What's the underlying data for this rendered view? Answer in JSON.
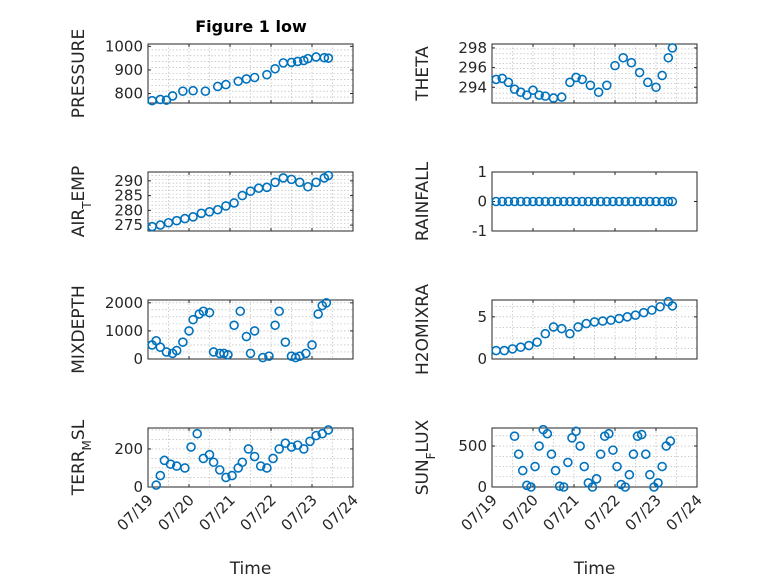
{
  "title": "Figure 1 low",
  "marker_color": "#0072bd",
  "chart_data": [
    {
      "type": "scatter",
      "id": "pressure",
      "ylabel": "PRESSURE",
      "xlabel": "",
      "xlim": [
        0,
        5
      ],
      "ylim": [
        760,
        1010
      ],
      "yticks": [
        {
          "v": 800,
          "label": "800"
        },
        {
          "v": 900,
          "label": "900"
        },
        {
          "v": 1000,
          "label": "1000"
        }
      ],
      "xticks": [],
      "grid": true,
      "x": [
        0.1,
        0.3,
        0.45,
        0.6,
        0.85,
        1.1,
        1.4,
        1.7,
        1.9,
        2.2,
        2.4,
        2.6,
        2.9,
        3.1,
        3.3,
        3.5,
        3.65,
        3.8,
        3.9,
        4.1,
        4.3,
        4.4
      ],
      "y": [
        770,
        775,
        772,
        790,
        810,
        812,
        810,
        830,
        838,
        852,
        862,
        868,
        880,
        905,
        930,
        932,
        936,
        940,
        948,
        955,
        952,
        950
      ]
    },
    {
      "type": "scatter",
      "id": "theta",
      "ylabel": "THETA",
      "xlabel": "",
      "xlim": [
        0,
        5
      ],
      "ylim": [
        292.4,
        298.4
      ],
      "yticks": [
        {
          "v": 294,
          "label": "294"
        },
        {
          "v": 296,
          "label": "296"
        },
        {
          "v": 298,
          "label": "298"
        }
      ],
      "xticks": [],
      "grid": true,
      "x": [
        0.1,
        0.25,
        0.4,
        0.55,
        0.7,
        0.85,
        1.0,
        1.15,
        1.3,
        1.5,
        1.7,
        1.9,
        2.05,
        2.2,
        2.4,
        2.6,
        2.8,
        3.0,
        3.2,
        3.4,
        3.6,
        3.8,
        4.0,
        4.15,
        4.3,
        4.4
      ],
      "y": [
        294.8,
        294.9,
        294.5,
        293.8,
        293.5,
        293.2,
        293.7,
        293.2,
        293.1,
        292.9,
        293.0,
        294.5,
        295.0,
        294.8,
        294.2,
        293.5,
        294.2,
        296.2,
        297.0,
        296.5,
        295.5,
        294.5,
        294.0,
        295.2,
        297.0,
        298.0
      ]
    },
    {
      "type": "scatter",
      "id": "air_temp",
      "ylabel": "AIR_TEMP",
      "xlabel": "",
      "xlim": [
        0,
        5
      ],
      "ylim": [
        273,
        293
      ],
      "yticks": [
        {
          "v": 275,
          "label": "275"
        },
        {
          "v": 280,
          "label": "280"
        },
        {
          "v": 285,
          "label": "285"
        },
        {
          "v": 290,
          "label": "290"
        }
      ],
      "xticks": [],
      "grid": true,
      "x": [
        0.1,
        0.3,
        0.5,
        0.7,
        0.9,
        1.1,
        1.3,
        1.5,
        1.7,
        1.9,
        2.1,
        2.3,
        2.5,
        2.7,
        2.9,
        3.1,
        3.3,
        3.5,
        3.7,
        3.9,
        4.1,
        4.3,
        4.4
      ],
      "y": [
        274.5,
        275.0,
        275.8,
        276.5,
        277.2,
        277.8,
        279.0,
        279.5,
        280.2,
        281.5,
        282.5,
        285.0,
        286.5,
        287.5,
        287.8,
        289.5,
        291.0,
        290.5,
        289.5,
        288.0,
        289.5,
        291.0,
        291.8
      ]
    },
    {
      "type": "scatter",
      "id": "rainfall",
      "ylabel": "RAINFALL",
      "xlabel": "",
      "xlim": [
        0,
        5
      ],
      "ylim": [
        -1,
        1
      ],
      "yticks": [
        {
          "v": -1,
          "label": "-1"
        },
        {
          "v": 0,
          "label": "0"
        },
        {
          "v": 1,
          "label": "1"
        }
      ],
      "xticks": [],
      "grid": false,
      "x": [
        0.1,
        0.25,
        0.4,
        0.55,
        0.7,
        0.85,
        1.0,
        1.15,
        1.3,
        1.45,
        1.6,
        1.75,
        1.9,
        2.05,
        2.2,
        2.35,
        2.5,
        2.65,
        2.8,
        2.95,
        3.1,
        3.25,
        3.4,
        3.55,
        3.7,
        3.85,
        4.0,
        4.15,
        4.3,
        4.4
      ],
      "y": [
        0,
        0,
        0,
        0,
        0,
        0,
        0,
        0,
        0,
        0,
        0,
        0,
        0,
        0,
        0,
        0,
        0,
        0,
        0,
        0,
        0,
        0,
        0,
        0,
        0,
        0,
        0,
        0,
        0,
        0
      ]
    },
    {
      "type": "scatter",
      "id": "mixdepth",
      "ylabel": "MIXDEPTH",
      "xlabel": "",
      "xlim": [
        0,
        5
      ],
      "ylim": [
        0,
        2100
      ],
      "yticks": [
        {
          "v": 0,
          "label": "0"
        },
        {
          "v": 1000,
          "label": "1000"
        },
        {
          "v": 2000,
          "label": "2000"
        }
      ],
      "xticks": [],
      "grid": true,
      "x": [
        0.1,
        0.2,
        0.3,
        0.45,
        0.6,
        0.7,
        0.85,
        1.0,
        1.1,
        1.25,
        1.35,
        1.5,
        1.6,
        1.75,
        1.85,
        1.95,
        2.1,
        2.25,
        2.4,
        2.5,
        2.6,
        2.8,
        2.95,
        3.1,
        3.2,
        3.35,
        3.5,
        3.6,
        3.7,
        3.85,
        4.0,
        4.15,
        4.25,
        4.35
      ],
      "y": [
        500,
        650,
        420,
        250,
        200,
        300,
        600,
        1000,
        1400,
        1600,
        1700,
        1650,
        250,
        200,
        200,
        150,
        1200,
        1700,
        800,
        200,
        1000,
        50,
        100,
        1200,
        1700,
        600,
        100,
        50,
        100,
        200,
        500,
        1600,
        1900,
        2000
      ]
    },
    {
      "type": "scatter",
      "id": "h2omixra",
      "ylabel": "H2OMIXRA",
      "xlabel": "",
      "xlim": [
        0,
        5
      ],
      "ylim": [
        0,
        7
      ],
      "yticks": [
        {
          "v": 0,
          "label": "0"
        },
        {
          "v": 5,
          "label": "5"
        }
      ],
      "xticks": [],
      "grid": true,
      "x": [
        0.1,
        0.3,
        0.5,
        0.7,
        0.9,
        1.1,
        1.3,
        1.5,
        1.7,
        1.9,
        2.1,
        2.3,
        2.5,
        2.7,
        2.9,
        3.1,
        3.3,
        3.5,
        3.7,
        3.9,
        4.1,
        4.3,
        4.4
      ],
      "y": [
        1.0,
        1.0,
        1.2,
        1.4,
        1.6,
        2.0,
        3.0,
        3.8,
        3.6,
        3.0,
        3.8,
        4.2,
        4.4,
        4.5,
        4.6,
        4.8,
        5.0,
        5.2,
        5.5,
        5.8,
        6.2,
        6.8,
        6.3
      ]
    },
    {
      "type": "scatter",
      "id": "terr_msl",
      "ylabel": "TERR_MSL",
      "xlabel": "Time",
      "xlim": [
        0,
        5
      ],
      "ylim": [
        0,
        310
      ],
      "yticks": [
        {
          "v": 0,
          "label": "0"
        },
        {
          "v": 200,
          "label": "200"
        }
      ],
      "xticks": [
        {
          "v": 0,
          "label": "07/19"
        },
        {
          "v": 1,
          "label": "07/20"
        },
        {
          "v": 2,
          "label": "07/21"
        },
        {
          "v": 3,
          "label": "07/22"
        },
        {
          "v": 4,
          "label": "07/23"
        },
        {
          "v": 5,
          "label": "07/24"
        }
      ],
      "grid": true,
      "x": [
        0.2,
        0.3,
        0.4,
        0.55,
        0.7,
        0.9,
        1.05,
        1.2,
        1.35,
        1.5,
        1.6,
        1.75,
        1.9,
        2.05,
        2.2,
        2.3,
        2.45,
        2.6,
        2.75,
        2.9,
        3.05,
        3.2,
        3.35,
        3.5,
        3.65,
        3.8,
        3.95,
        4.1,
        4.25,
        4.4
      ],
      "y": [
        10,
        60,
        140,
        120,
        110,
        100,
        210,
        280,
        150,
        170,
        130,
        90,
        50,
        60,
        100,
        130,
        200,
        160,
        110,
        100,
        150,
        200,
        230,
        210,
        220,
        200,
        240,
        270,
        280,
        300
      ]
    },
    {
      "type": "scatter",
      "id": "sun_flux",
      "ylabel": "SUN_FLUX",
      "xlabel": "Time",
      "xlim": [
        0,
        5
      ],
      "ylim": [
        0,
        720
      ],
      "yticks": [
        {
          "v": 0,
          "label": "0"
        },
        {
          "v": 500,
          "label": "500"
        }
      ],
      "xticks": [
        {
          "v": 0,
          "label": "07/19"
        },
        {
          "v": 1,
          "label": "07/20"
        },
        {
          "v": 2,
          "label": "07/21"
        },
        {
          "v": 3,
          "label": "07/22"
        },
        {
          "v": 4,
          "label": "07/23"
        },
        {
          "v": 5,
          "label": "07/24"
        }
      ],
      "grid": true,
      "x": [
        0.55,
        0.65,
        0.75,
        0.85,
        0.95,
        1.05,
        1.15,
        1.25,
        1.35,
        1.45,
        1.55,
        1.65,
        1.75,
        1.85,
        1.95,
        2.05,
        2.15,
        2.25,
        2.35,
        2.45,
        2.55,
        2.65,
        2.75,
        2.85,
        2.95,
        3.05,
        3.15,
        3.25,
        3.35,
        3.45,
        3.55,
        3.65,
        3.75,
        3.85,
        3.95,
        4.05,
        4.15,
        4.25,
        4.35
      ],
      "y": [
        620,
        400,
        200,
        20,
        0,
        250,
        500,
        700,
        650,
        400,
        200,
        10,
        0,
        300,
        600,
        680,
        500,
        250,
        50,
        0,
        100,
        400,
        620,
        650,
        450,
        250,
        30,
        0,
        150,
        400,
        620,
        640,
        400,
        150,
        0,
        50,
        250,
        500,
        560
      ]
    }
  ]
}
